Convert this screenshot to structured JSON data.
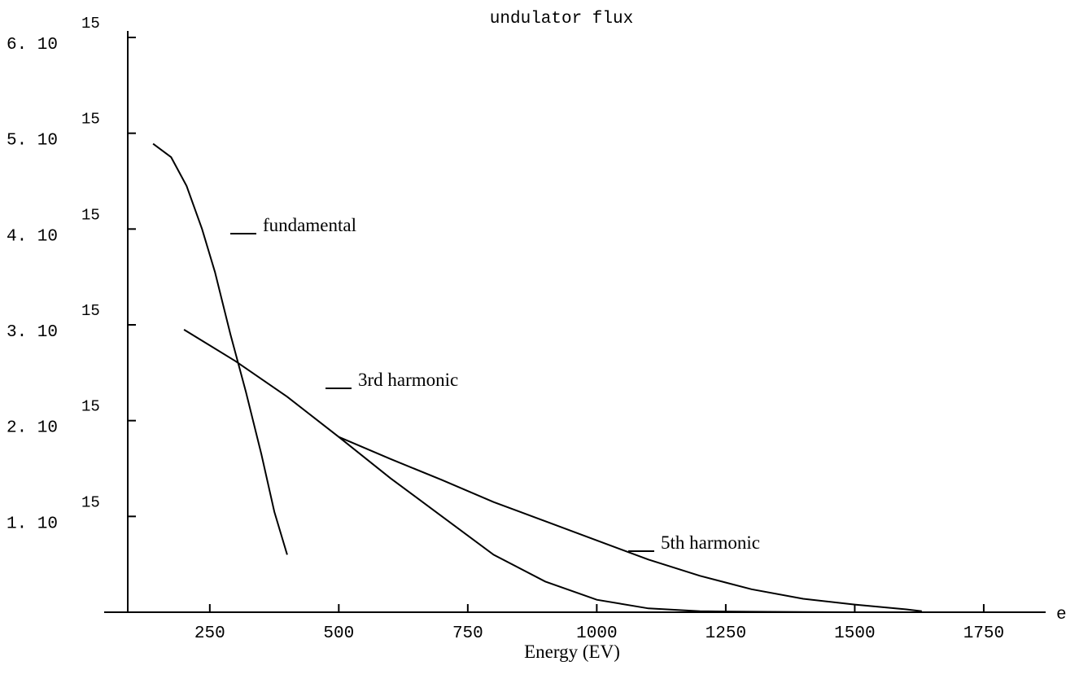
{
  "chart_data": {
    "type": "line",
    "title": "undulator flux",
    "x_label": "Energy (EV)",
    "x_axis_end_label": "e",
    "xlim": [
      91,
      1870
    ],
    "xticks": [
      250,
      500,
      750,
      1000,
      1250,
      1500,
      1750
    ],
    "ylim": [
      0,
      6000000000000000
    ],
    "yticks": [
      {
        "value": 1000000000000000,
        "label": "1. 10",
        "exponent": "15"
      },
      {
        "value": 2000000000000000,
        "label": "2. 10",
        "exponent": "15"
      },
      {
        "value": 3000000000000000,
        "label": "3. 10",
        "exponent": "15"
      },
      {
        "value": 4000000000000000,
        "label": "4. 10",
        "exponent": "15"
      },
      {
        "value": 5000000000000000,
        "label": "5. 10",
        "exponent": "15"
      },
      {
        "value": 6000000000000000,
        "label": "6. 10",
        "exponent": "15"
      }
    ],
    "grid": false,
    "series": [
      {
        "name": "fundamental",
        "color": "#000000",
        "x": [
          140,
          175,
          205,
          235,
          260,
          290,
          320,
          350,
          375,
          400
        ],
        "values": [
          4890000000000000,
          4750000000000000,
          4450000000000000,
          4000000000000000,
          3550000000000000,
          2900000000000000,
          2300000000000000,
          1650000000000000,
          1050000000000000,
          600000000000000
        ]
      },
      {
        "name": "3rd harmonic",
        "color": "#000000",
        "x": [
          200,
          300,
          400,
          500,
          600,
          700,
          800,
          900,
          1000,
          1100,
          1200,
          1300,
          1400,
          1500
        ],
        "values": [
          2950000000000000,
          2620000000000000,
          2250000000000000,
          1830000000000000,
          1400000000000000,
          1000000000000000,
          600000000000000,
          320000000000000,
          130000000000000,
          40000000000000,
          10000000000000,
          5000000000000,
          2000000000000,
          0
        ]
      },
      {
        "name": "5th harmonic",
        "color": "#000000",
        "x": [
          500,
          600,
          700,
          800,
          900,
          1000,
          1100,
          1200,
          1300,
          1400,
          1500,
          1600,
          1630
        ],
        "values": [
          1830000000000000,
          1600000000000000,
          1380000000000000,
          1150000000000000,
          950000000000000,
          750000000000000,
          550000000000000,
          380000000000000,
          240000000000000,
          140000000000000,
          80000000000000,
          30000000000000,
          10000000000000
        ]
      }
    ]
  }
}
